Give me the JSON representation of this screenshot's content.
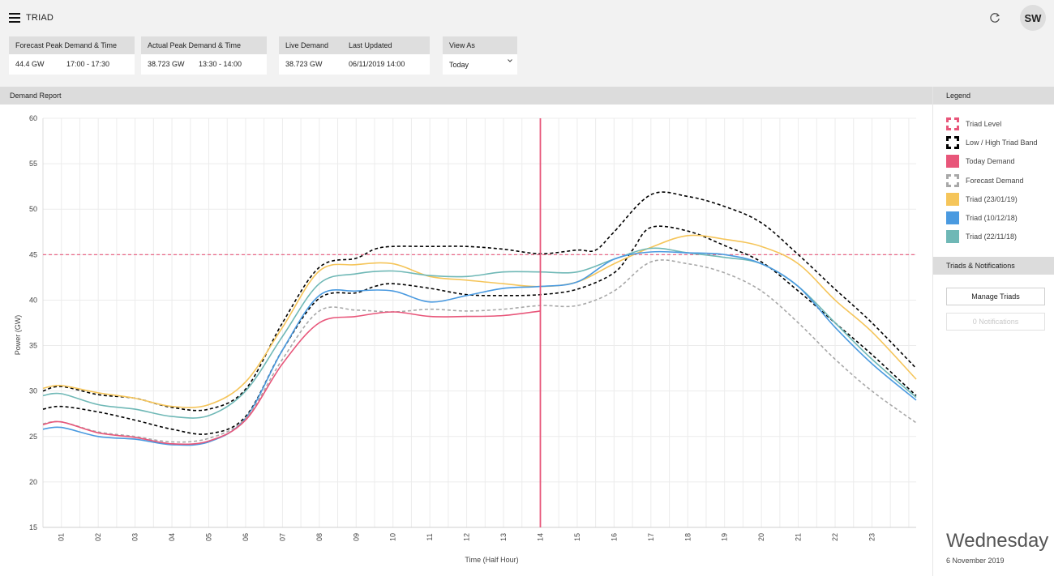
{
  "app": {
    "title": "TRIAD",
    "avatar_initials": "SW"
  },
  "stats": {
    "forecast": {
      "label": "Forecast Peak Demand & Time",
      "value": "44.4 GW",
      "time": "17:00 - 17:30"
    },
    "actual": {
      "label": "Actual Peak Demand & Time",
      "value": "38.723 GW",
      "time": "13:30 - 14:00"
    },
    "live": {
      "label": "Live Demand",
      "value": "38.723 GW"
    },
    "updated": {
      "label": "Last Updated",
      "value": "06/11/2019 14:00"
    },
    "view": {
      "label": "View As",
      "value": "Today"
    }
  },
  "report": {
    "title": "Demand Report"
  },
  "legend": {
    "title": "Legend",
    "items": [
      {
        "label": "Triad Level",
        "color": "#e8567a",
        "style": "dashed"
      },
      {
        "label": "Low / High Triad Band",
        "color": "#000000",
        "style": "dashed"
      },
      {
        "label": "Today Demand",
        "color": "#e8567a",
        "style": "solid"
      },
      {
        "label": "Forecast Demand",
        "color": "#a8a8a8",
        "style": "dashed"
      },
      {
        "label": "Triad (23/01/19)",
        "color": "#f5c55a",
        "style": "solid"
      },
      {
        "label": "Triad (10/12/18)",
        "color": "#4a9ae0",
        "style": "solid"
      },
      {
        "label": "Triad (22/11/18)",
        "color": "#6fb8b6",
        "style": "solid"
      }
    ]
  },
  "notifications": {
    "title": "Triads & Notifications",
    "manage_label": "Manage Triads",
    "notifications_label": "0 Notifications"
  },
  "date_display": {
    "day": "Wednesday",
    "date": "6 November 2019"
  },
  "chart_data": {
    "type": "line",
    "title": "",
    "xlabel": "Time (Half Hour)",
    "ylabel": "Power (GW)",
    "ylim": [
      15,
      60
    ],
    "yticks": [
      15,
      20,
      25,
      30,
      35,
      40,
      45,
      50,
      55,
      60
    ],
    "xlim": [
      0.5,
      24.2
    ],
    "xticks": [
      "01",
      "02",
      "03",
      "04",
      "05",
      "06",
      "07",
      "08",
      "09",
      "10",
      "11",
      "12",
      "13",
      "14",
      "15",
      "16",
      "17",
      "18",
      "19",
      "20",
      "21",
      "22",
      "23"
    ],
    "grid": true,
    "triad_level": 45,
    "current_time": 14,
    "series": [
      {
        "name": "Low / High Triad Band",
        "color": "#000000",
        "style": "dashed",
        "x": [
          0.5,
          1,
          2,
          3,
          4,
          5,
          6,
          7,
          8,
          9,
          9.5,
          10,
          11,
          12,
          13,
          14,
          15,
          15.5,
          16,
          17,
          18,
          19,
          20,
          21,
          22,
          23,
          24.2
        ],
        "y": [
          30.0,
          30.5,
          29.6,
          29.2,
          28.2,
          28.0,
          30.2,
          37.5,
          43.6,
          44.6,
          45.6,
          45.9,
          45.9,
          45.9,
          45.6,
          45.1,
          45.5,
          45.5,
          47.5,
          51.6,
          51.4,
          50.3,
          48.5,
          45.0,
          41.2,
          37.5,
          32.5
        ]
      },
      {
        "name": "Low / High Triad Band",
        "color": "#000000",
        "style": "dashed",
        "x": [
          0.5,
          1,
          2,
          3,
          4,
          5,
          6,
          7,
          8,
          9,
          9.5,
          10,
          11,
          12,
          13,
          14,
          15,
          16,
          16.5,
          17,
          18,
          19,
          20,
          21,
          22,
          23,
          24.2
        ],
        "y": [
          28.0,
          28.3,
          27.7,
          26.8,
          25.8,
          25.3,
          27.2,
          34.5,
          40.2,
          40.8,
          41.5,
          41.8,
          41.3,
          40.6,
          40.5,
          40.6,
          41.2,
          43.0,
          45.5,
          48.0,
          47.6,
          46.0,
          44.2,
          41.0,
          37.5,
          34.0,
          29.5
        ]
      },
      {
        "name": "Triad (23/01/19)",
        "color": "#f5c55a",
        "style": "solid",
        "x": [
          0.5,
          1,
          2,
          3,
          4,
          5,
          6,
          7,
          8,
          9,
          10,
          11,
          12,
          13,
          14,
          15,
          16,
          17,
          18,
          19,
          20,
          21,
          22,
          23,
          24.2
        ],
        "y": [
          30.3,
          30.6,
          29.8,
          29.2,
          28.3,
          28.5,
          31.0,
          37.0,
          43.2,
          43.9,
          44.0,
          42.6,
          42.2,
          41.8,
          41.5,
          42.0,
          44.0,
          45.8,
          47.1,
          46.7,
          45.9,
          44.0,
          40.0,
          36.5,
          31.3
        ]
      },
      {
        "name": "Triad (22/11/18)",
        "color": "#6fb8b6",
        "style": "solid",
        "x": [
          0.5,
          1,
          2,
          3,
          4,
          5,
          6,
          7,
          8,
          9,
          10,
          11,
          12,
          13,
          14,
          15,
          16,
          17,
          18,
          19,
          20,
          21,
          22,
          23,
          24.2
        ],
        "y": [
          29.5,
          29.7,
          28.5,
          28.0,
          27.2,
          27.3,
          30.0,
          36.0,
          41.8,
          42.9,
          43.2,
          42.7,
          42.6,
          43.1,
          43.1,
          43.1,
          44.5,
          45.7,
          45.2,
          44.7,
          44.0,
          41.5,
          37.5,
          33.5,
          29.3
        ]
      },
      {
        "name": "Triad (10/12/18)",
        "color": "#4a9ae0",
        "style": "solid",
        "x": [
          0.5,
          1,
          2,
          3,
          4,
          5,
          6,
          7,
          8,
          9,
          10,
          11,
          12,
          13,
          14,
          15,
          16,
          17,
          18,
          19,
          20,
          21,
          22,
          23,
          24.2
        ],
        "y": [
          25.8,
          26.0,
          25.0,
          24.7,
          24.1,
          24.4,
          27.0,
          34.5,
          40.5,
          41.0,
          41.0,
          39.8,
          40.5,
          41.3,
          41.5,
          42.0,
          44.5,
          45.3,
          45.2,
          45.0,
          44.0,
          41.5,
          37.0,
          33.0,
          29.0
        ]
      },
      {
        "name": "Forecast Demand",
        "color": "#a8a8a8",
        "style": "dashed",
        "x": [
          0.5,
          1,
          2,
          3,
          4,
          5,
          6,
          7,
          8,
          9,
          10,
          11,
          12,
          13,
          14,
          15,
          16,
          17,
          18,
          19,
          20,
          21,
          22,
          23,
          24.2
        ],
        "y": [
          26.4,
          26.6,
          25.5,
          25.0,
          24.4,
          24.8,
          27.0,
          33.5,
          38.8,
          38.9,
          38.7,
          39.0,
          38.8,
          39.0,
          39.4,
          39.4,
          41.0,
          44.2,
          44.0,
          43.0,
          41.0,
          37.5,
          33.5,
          30.0,
          26.5
        ]
      },
      {
        "name": "Today Demand",
        "color": "#e8567a",
        "style": "solid",
        "x": [
          0.5,
          1,
          2,
          3,
          4,
          5,
          6,
          7,
          8,
          9,
          10,
          11,
          12,
          13,
          14
        ],
        "y": [
          26.3,
          26.6,
          25.4,
          24.9,
          24.2,
          24.5,
          26.8,
          33.0,
          37.5,
          38.2,
          38.7,
          38.2,
          38.2,
          38.3,
          38.8
        ]
      }
    ]
  }
}
